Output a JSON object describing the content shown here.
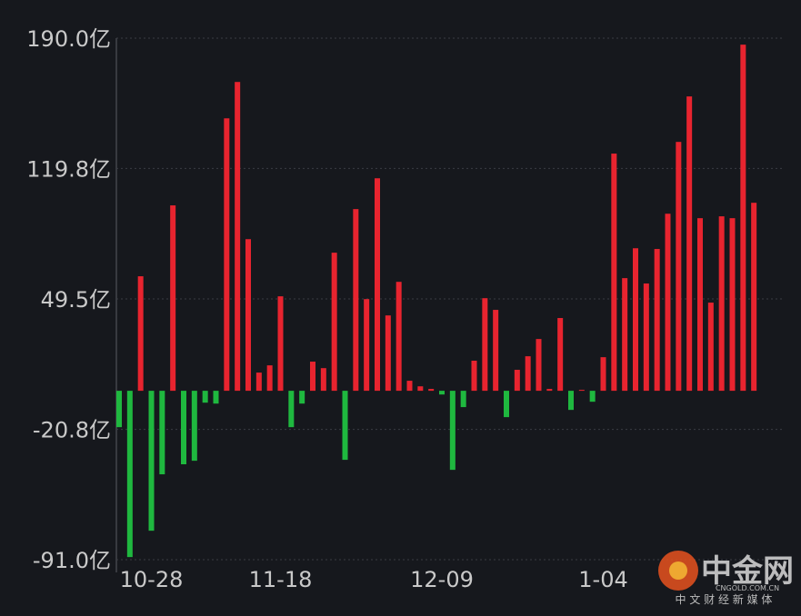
{
  "chart_data": {
    "type": "bar",
    "categories": [
      null,
      null,
      null,
      "10-28",
      null,
      null,
      null,
      null,
      null,
      null,
      null,
      null,
      null,
      null,
      null,
      "11-18",
      null,
      null,
      null,
      null,
      null,
      null,
      null,
      null,
      null,
      null,
      null,
      null,
      null,
      null,
      "12-09",
      null,
      null,
      null,
      null,
      null,
      null,
      null,
      null,
      null,
      null,
      null,
      null,
      null,
      null,
      "1-04",
      null,
      null,
      null,
      null,
      null,
      null,
      null,
      null,
      null,
      null,
      null,
      null,
      null,
      null
    ],
    "values": [
      -19.6,
      -89.6,
      61.7,
      -75.4,
      -45.0,
      99.9,
      -39.6,
      -37.7,
      -6.4,
      -6.9,
      146.8,
      166.4,
      81.7,
      9.8,
      13.7,
      50.9,
      -19.6,
      -6.9,
      15.7,
      12.2,
      74.4,
      -37.2,
      97.9,
      49.4,
      114.5,
      40.6,
      58.7,
      5.4,
      2.4,
      1.0,
      -2.0,
      -42.6,
      -8.8,
      16.2,
      49.9,
      43.6,
      -14.2,
      11.3,
      18.6,
      27.9,
      1.0,
      39.2,
      -10.3,
      0.5,
      -5.9,
      18.1,
      127.8,
      60.7,
      76.8,
      57.8,
      76.4,
      95.4,
      134.1,
      158.6,
      93.0,
      47.5,
      94.0,
      93.0,
      186.5,
      101.3
    ],
    "positive_color": "#e8242f",
    "negative_color": "#1fb83f",
    "ylim": [
      -91.0,
      190.0
    ],
    "yticks": [
      {
        "value": -91.0,
        "label": "-91.0亿"
      },
      {
        "value": -20.8,
        "label": "-20.8亿"
      },
      {
        "value": 49.5,
        "label": "49.5亿"
      },
      {
        "value": 119.8,
        "label": "119.8亿"
      },
      {
        "value": 190.0,
        "label": "190.0亿"
      }
    ],
    "grid": true
  },
  "watermark": {
    "brand": "中金网",
    "domain": "CNGOLD.COM.CN",
    "slogan": "中 文 财 经 新 媒 体"
  }
}
